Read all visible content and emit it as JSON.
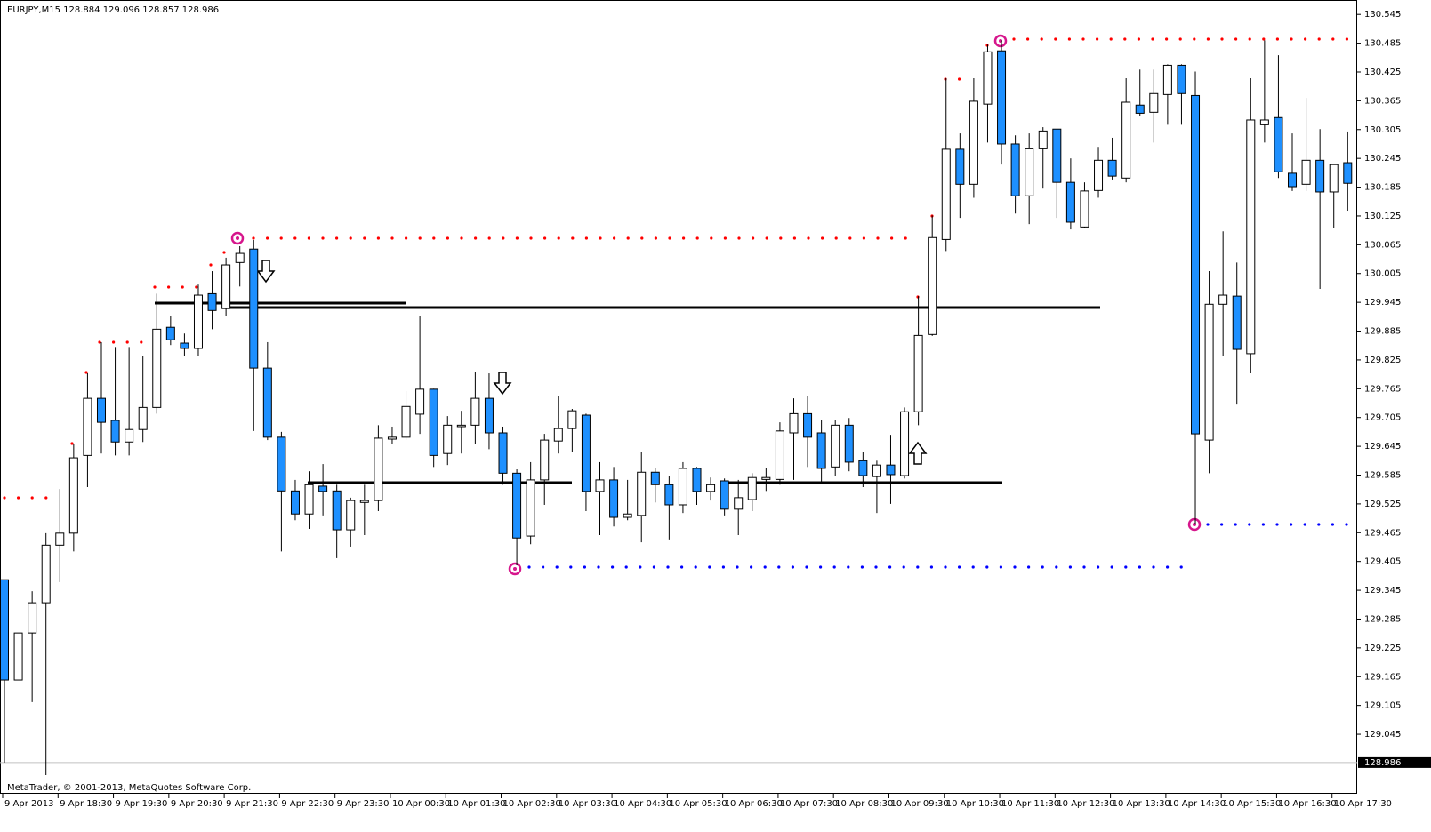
{
  "chart_data": {
    "type": "candlestick",
    "title": "EURJPY,M15  128.884 129.096 128.857 128.986",
    "footer": "MetaTrader, © 2001-2013, MetaQuotes Software Corp.",
    "current_price": 128.986,
    "up_color": "#ffffff",
    "down_color": "#1e90ff",
    "categories": [
      "9 Apr 2013",
      null,
      null,
      null,
      "9 Apr 18:30",
      null,
      null,
      null,
      "9 Apr 19:30",
      null,
      null,
      null,
      "9 Apr 20:30",
      null,
      null,
      null,
      "9 Apr 21:30",
      null,
      null,
      null,
      "9 Apr 22:30",
      null,
      null,
      null,
      "9 Apr 23:30",
      null,
      null,
      null,
      "10 Apr 00:30",
      null,
      null,
      null,
      "10 Apr 01:30",
      null,
      null,
      null,
      "10 Apr 02:30",
      null,
      null,
      null,
      "10 Apr 03:30",
      null,
      null,
      null,
      "10 Apr 04:30",
      null,
      null,
      null,
      "10 Apr 05:30",
      null,
      null,
      null,
      "10 Apr 06:30",
      null,
      null,
      null,
      "10 Apr 07:30",
      null,
      null,
      null,
      "10 Apr 08:30",
      null,
      null,
      null,
      "10 Apr 09:30",
      null,
      null,
      null,
      "10 Apr 10:30",
      null,
      null,
      null,
      "10 Apr 11:30",
      null,
      null,
      null,
      "10 Apr 12:30",
      null,
      null,
      null,
      "10 Apr 13:30",
      null,
      null,
      null,
      "10 Apr 14:30",
      null,
      null,
      null,
      "10 Apr 15:30",
      null,
      null,
      null,
      "10 Apr 16:30",
      null,
      null,
      null,
      "10 Apr 17:30",
      null
    ],
    "open": [
      129.367,
      129.158,
      129.256,
      129.319,
      129.439,
      129.464,
      129.626,
      129.745,
      129.699,
      129.654,
      129.68,
      129.726,
      129.893,
      129.86,
      129.849,
      129.963,
      129.932,
      130.028,
      130.056,
      129.808,
      129.664,
      129.552,
      129.504,
      129.562,
      129.552,
      129.471,
      129.528,
      129.532,
      129.66,
      129.664,
      129.712,
      129.764,
      129.63,
      129.686,
      129.689,
      129.745,
      129.673,
      129.589,
      129.458,
      129.575,
      129.656,
      129.682,
      129.71,
      129.551,
      129.575,
      129.497,
      129.501,
      129.591,
      129.565,
      129.523,
      129.599,
      129.551,
      129.573,
      129.514,
      129.534,
      129.576,
      129.576,
      129.673,
      129.713,
      129.673,
      129.602,
      129.689,
      129.615,
      129.582,
      129.606,
      129.584,
      129.717,
      129.878,
      130.076,
      130.264,
      130.191,
      130.358,
      130.469,
      130.275,
      130.167,
      130.265,
      130.306,
      130.195,
      130.102,
      130.178,
      130.241,
      130.204,
      130.356,
      130.341,
      130.378,
      130.439,
      130.376,
      129.658,
      129.941,
      129.958,
      129.838,
      130.315,
      130.33,
      130.214,
      130.191,
      130.241,
      130.175,
      130.236
    ],
    "high": [
      129.367,
      129.256,
      129.343,
      129.464,
      129.556,
      129.649,
      129.797,
      129.862,
      129.852,
      129.852,
      129.834,
      129.963,
      129.917,
      129.88,
      129.982,
      130.01,
      130.038,
      130.062,
      130.075,
      129.862,
      129.675,
      129.575,
      129.593,
      129.608,
      129.565,
      129.538,
      129.565,
      129.689,
      129.686,
      129.76,
      129.917,
      129.765,
      129.708,
      129.719,
      129.8,
      129.797,
      129.686,
      129.597,
      129.612,
      129.671,
      129.749,
      129.723,
      129.713,
      129.612,
      129.602,
      129.575,
      129.634,
      129.599,
      129.584,
      129.612,
      129.602,
      129.58,
      129.578,
      129.575,
      129.589,
      129.599,
      129.695,
      129.745,
      129.75,
      129.7,
      129.699,
      129.704,
      129.634,
      129.615,
      129.669,
      129.726,
      129.958,
      130.126,
      130.412,
      130.297,
      130.412,
      130.482,
      130.491,
      130.293,
      130.297,
      130.31,
      130.306,
      130.245,
      130.195,
      130.269,
      130.288,
      130.412,
      130.43,
      130.43,
      130.441,
      130.441,
      130.426,
      130.01,
      130.093,
      130.028,
      130.412,
      130.491,
      130.46,
      130.297,
      130.371,
      130.306,
      130.232,
      130.301
    ],
    "low": [
      128.986,
      129.158,
      129.112,
      128.96,
      129.362,
      129.426,
      129.56,
      129.63,
      129.626,
      129.626,
      129.654,
      129.713,
      129.856,
      129.834,
      129.834,
      129.889,
      129.917,
      129.978,
      129.677,
      129.658,
      129.426,
      129.491,
      129.473,
      129.501,
      129.412,
      129.436,
      129.46,
      129.51,
      129.649,
      129.658,
      129.671,
      129.602,
      129.606,
      129.63,
      129.649,
      129.639,
      129.565,
      129.397,
      129.441,
      129.523,
      129.63,
      129.634,
      129.51,
      129.46,
      129.478,
      129.491,
      129.445,
      129.528,
      129.451,
      129.506,
      129.523,
      129.532,
      129.501,
      129.46,
      129.51,
      129.552,
      129.565,
      129.575,
      129.602,
      129.569,
      129.584,
      129.593,
      129.56,
      129.506,
      129.525,
      129.578,
      129.689,
      129.875,
      130.052,
      130.121,
      130.163,
      130.278,
      130.232,
      130.13,
      130.108,
      130.182,
      130.121,
      130.097,
      130.099,
      130.163,
      130.201,
      130.195,
      130.334,
      130.278,
      130.315,
      130.315,
      129.482,
      129.589,
      129.834,
      129.732,
      129.797,
      130.278,
      130.204,
      130.177,
      130.177,
      129.973,
      130.1,
      130.136
    ],
    "close": [
      129.158,
      129.256,
      129.319,
      129.439,
      129.464,
      129.621,
      129.745,
      129.695,
      129.654,
      129.68,
      129.726,
      129.889,
      129.867,
      129.849,
      129.96,
      129.928,
      130.023,
      130.047,
      129.808,
      129.664,
      129.552,
      129.504,
      129.565,
      129.551,
      129.471,
      129.532,
      129.532,
      129.662,
      129.664,
      129.728,
      129.764,
      129.626,
      129.689,
      129.689,
      129.745,
      129.673,
      129.589,
      129.454,
      129.575,
      129.658,
      129.682,
      129.719,
      129.551,
      129.575,
      129.497,
      129.504,
      129.591,
      129.565,
      129.523,
      129.599,
      129.551,
      129.565,
      129.514,
      129.538,
      129.58,
      129.58,
      129.677,
      129.713,
      129.664,
      129.599,
      129.689,
      129.612,
      129.584,
      129.606,
      129.586,
      129.717,
      129.876,
      130.08,
      130.264,
      130.191,
      130.364,
      130.467,
      130.275,
      130.167,
      130.265,
      130.302,
      130.195,
      130.112,
      130.177,
      130.241,
      130.208,
      130.362,
      130.339,
      130.38,
      130.439,
      130.38,
      129.671,
      129.941,
      129.96,
      129.847,
      130.325,
      130.325,
      130.217,
      130.186,
      130.241,
      130.175,
      130.232,
      130.193
    ],
    "ylim": [
      128.921,
      130.575
    ],
    "yticks": [
      130.545,
      130.485,
      130.425,
      130.365,
      130.305,
      130.245,
      130.185,
      130.125,
      130.065,
      130.005,
      129.945,
      129.885,
      129.825,
      129.765,
      129.705,
      129.645,
      129.585,
      129.525,
      129.465,
      129.405,
      129.345,
      129.285,
      129.225,
      129.165,
      129.105,
      129.045
    ],
    "grid": false
  }
}
